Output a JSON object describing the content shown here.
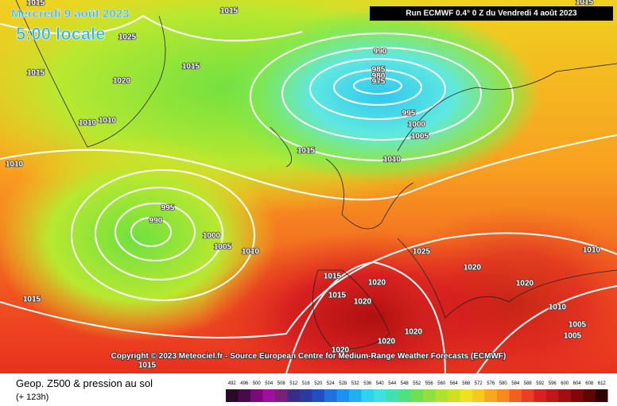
{
  "header": {
    "date": "Mercredi 9 août 2023",
    "time": "5:00 locale",
    "run": "Run ECMWF 0.4° 0 Z du Vendredi 4 août 2023"
  },
  "copyright": "Copyright © 2023 Meteociel.fr - Source European Centre for Medium-Range Weather Forecasts (ECMWF)",
  "footer": {
    "title": "Geop. Z500 & pression au sol",
    "lead": "(+ 123h)"
  },
  "isobar_labels": [
    "1015",
    "1015",
    "1025",
    "1015",
    "1015",
    "1020",
    "990",
    "985",
    "980",
    "975",
    "995",
    "1000",
    "1005",
    "1010",
    "1010",
    "1015",
    "1010",
    "1010",
    "995",
    "990",
    "1000",
    "1005",
    "1010",
    "1025",
    "1020",
    "1010",
    "1015",
    "1020",
    "1015",
    "1020",
    "1020",
    "1010",
    "1015",
    "1005",
    "1005",
    "1020",
    "1020",
    "1020",
    "1015",
    "1015"
  ],
  "scale": {
    "labels": [
      492,
      496,
      500,
      504,
      508,
      512,
      516,
      520,
      524,
      528,
      532,
      536,
      540,
      544,
      548,
      552,
      556,
      560,
      564,
      568,
      572,
      576,
      580,
      584,
      588,
      592,
      596,
      600,
      604,
      608,
      612
    ],
    "colors": [
      "#2a0a2a",
      "#4a0a4a",
      "#7a0a7a",
      "#a010a0",
      "#7a207a",
      "#3a2a8a",
      "#2a3aa0",
      "#2050c0",
      "#2070e0",
      "#2090f0",
      "#20b0f0",
      "#30d0f0",
      "#40e0e0",
      "#40e0b0",
      "#50e080",
      "#70e050",
      "#90e040",
      "#b0e030",
      "#d0e020",
      "#f0e020",
      "#f8c820",
      "#f8a820",
      "#f88820",
      "#f06020",
      "#e84020",
      "#d82020",
      "#c01818",
      "#a01010",
      "#800808",
      "#600404",
      "#300000"
    ]
  }
}
